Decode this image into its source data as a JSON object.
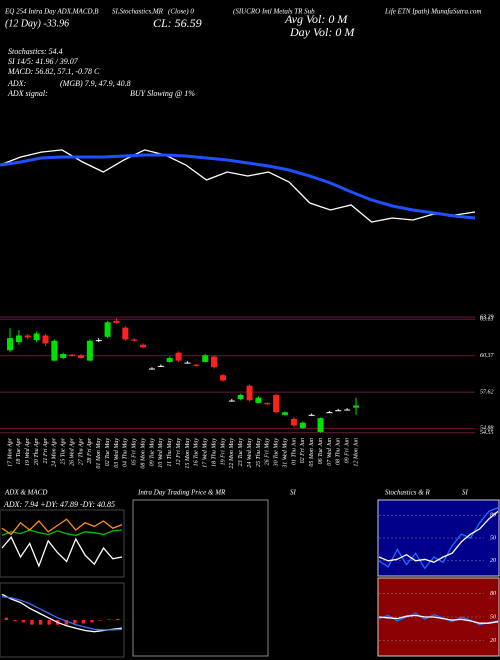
{
  "header": {
    "items": [
      "EQ 254 Intra Day ADX,MACD,B",
      "SI,Stochastics,MR",
      "(Close) 0",
      "(SIUCRO Intl Metals TR Sub",
      "Life ETN Ipath) MunafaSutra.com",
      "(12 Day) -33.96",
      "CL: 56.59",
      "Avg Vol: 0  M",
      "Day Vol: 0  M",
      "Stochastics: 54.4",
      "SI 14/5: 41.96 / 39.07",
      "MACD: 56.82, 57.1, -0.78  C",
      "ADX:",
      "(MGB) 7.9, 47.9, 40.8",
      "ADX signal:",
      "BUY Slowing @ 1%"
    ]
  },
  "intraday": {
    "title": "Intra Day Trading Price & MR",
    "suffix": "SI"
  },
  "chart_data": [
    {
      "type": "line",
      "ylim": [
        54,
        64
      ],
      "series": [
        {
          "name": "Price",
          "color": "#ffffff",
          "values": [
            60.67,
            61.43,
            61.9,
            62.1,
            60.95,
            60.0,
            61.14,
            62.1,
            61.62,
            60.67,
            59.24,
            60.0,
            59.62,
            60.0,
            59.05,
            57.05,
            56.38,
            56.86,
            55.24,
            55.62,
            55.43,
            56.0,
            55.9,
            56.19
          ]
        },
        {
          "name": "MA",
          "color": "#1e50ff",
          "values": [
            60.67,
            60.95,
            61.33,
            61.43,
            61.43,
            61.43,
            61.52,
            61.62,
            61.62,
            61.52,
            61.33,
            61.14,
            60.86,
            60.57,
            60.19,
            59.62,
            58.95,
            58.1,
            57.33,
            56.76,
            56.38,
            56.1,
            55.81,
            55.62
          ]
        }
      ]
    },
    {
      "type": "candlestick",
      "ylim": [
        54.3,
        63.6
      ],
      "yticks": [
        63.29,
        63.13,
        60.37,
        57.62,
        54.88,
        54.55
      ],
      "up_color": "#00e000",
      "down_color": "#ff2020",
      "flat_color": "#ffffff",
      "grid_color": "#6a1b3a",
      "categories": [
        "17 Mon Apr",
        "18 Tue Apr",
        "19 Wed Apr",
        "20 Thu Apr",
        "21 Fri Apr",
        "24 Mon Apr",
        "25 Tue Apr",
        "26 Wed Apr",
        "27 Thu Apr",
        "28 Fri Apr",
        "01 Mon May",
        "02 Tue May",
        "03 Wed May",
        "04 Thu May",
        "05 Fri May",
        "08 Mon May",
        "09 Tue May",
        "10 Wed May",
        "11 Thu May",
        "12 Fri May",
        "15 Mon May",
        "16 Tue May",
        "17 Wed May",
        "18 Thu May",
        "19 Fri May",
        "22 Mon May",
        "23 Tue May",
        "24 Wed May",
        "25 Thu May",
        "26 Fri May",
        "30 Tue May",
        "31 Wed May",
        "01 Thu Jun",
        "02 Fri Jun",
        "05 Mon Jun",
        "06 Tue Jun",
        "07 Wed Jun",
        "08 Thu Jun",
        "09 Fri Jun",
        "12 Mon Jun"
      ],
      "open": [
        60.78,
        61.4,
        61.9,
        61.55,
        61.9,
        60.0,
        60.2,
        60.45,
        60.4,
        60.0,
        61.55,
        61.8,
        63.0,
        62.5,
        61.6,
        61.2,
        59.4,
        59.6,
        59.9,
        60.6,
        59.85,
        59.7,
        59.9,
        60.3,
        58.9,
        56.98,
        57.1,
        58.1,
        56.8,
        56.8,
        57.4,
        55.9,
        55.6,
        54.9,
        55.9,
        54.6,
        56.1,
        56.25,
        56.3,
        56.45
      ],
      "close": [
        61.7,
        61.9,
        61.75,
        62.05,
        61.3,
        61.5,
        60.5,
        60.35,
        60.2,
        61.5,
        61.55,
        62.9,
        62.85,
        61.6,
        61.5,
        61.0,
        59.4,
        59.6,
        60.2,
        60.0,
        59.85,
        59.6,
        60.4,
        59.5,
        58.5,
        56.98,
        57.4,
        57.0,
        57.2,
        56.7,
        56.1,
        56.1,
        55.1,
        55.3,
        55.9,
        55.65,
        56.1,
        56.25,
        56.3,
        56.6
      ],
      "high": [
        62.45,
        62.3,
        62.0,
        62.2,
        62.0,
        61.6,
        60.6,
        60.5,
        60.5,
        61.6,
        61.7,
        63.0,
        63.2,
        62.6,
        61.7,
        61.3,
        59.5,
        59.7,
        60.3,
        60.7,
        59.95,
        59.75,
        60.5,
        60.4,
        59.0,
        57.1,
        57.5,
        58.2,
        57.3,
        56.85,
        57.5,
        56.15,
        55.7,
        55.4,
        56.0,
        55.7,
        56.2,
        56.35,
        56.4,
        57.2
      ],
      "low": [
        60.63,
        61.2,
        61.6,
        61.4,
        61.1,
        59.95,
        60.1,
        60.3,
        60.15,
        59.95,
        61.4,
        61.7,
        62.8,
        61.5,
        61.45,
        60.95,
        59.35,
        59.55,
        59.85,
        59.9,
        59.8,
        59.55,
        59.85,
        59.4,
        58.4,
        56.9,
        57.0,
        56.9,
        56.75,
        56.65,
        56.0,
        55.85,
        55.0,
        54.85,
        55.85,
        54.55,
        56.05,
        56.2,
        56.25,
        55.9
      ]
    },
    {
      "type": "line",
      "title": "ADX  & MACD",
      "subtitle": "ADX: 7.94  +DY: 47.89  -DY: 40.85",
      "ylim": [
        0,
        70
      ],
      "series": [
        {
          "name": "+DY",
          "color": "#00c000",
          "values": [
            44,
            48,
            46,
            50,
            47,
            45,
            49,
            46,
            44,
            48,
            47,
            45,
            49,
            50
          ]
        },
        {
          "name": "-DY",
          "color": "#ff8c1a",
          "values": [
            52,
            45,
            58,
            50,
            60,
            48,
            55,
            62,
            50,
            58,
            54,
            60,
            52,
            56
          ]
        },
        {
          "name": "ADX",
          "color": "#ffffff",
          "values": [
            30,
            42,
            20,
            35,
            10,
            38,
            25,
            15,
            40,
            22,
            12,
            30,
            18,
            20
          ]
        }
      ]
    },
    {
      "type": "line",
      "ylim": [
        -3,
        3
      ],
      "series": [
        {
          "name": "MACD",
          "color": "#ffffff",
          "values": [
            2.2,
            1.8,
            1.5,
            1.0,
            0.6,
            0.2,
            -0.2,
            -0.5,
            -0.7,
            -0.9,
            -1.0,
            -0.9,
            -0.8,
            -0.7
          ]
        },
        {
          "name": "Signal",
          "color": "#3a6cff",
          "values": [
            2.0,
            1.9,
            1.7,
            1.4,
            1.0,
            0.6,
            0.2,
            -0.1,
            -0.4,
            -0.6,
            -0.8,
            -0.85,
            -0.85,
            -0.8
          ]
        }
      ],
      "histogram": {
        "color": "#ff2020",
        "values": [
          0.2,
          -0.1,
          -0.2,
          -0.4,
          -0.4,
          -0.4,
          -0.4,
          -0.4,
          -0.3,
          -0.3,
          -0.2,
          -0.05,
          0.05,
          0.1
        ]
      }
    },
    {
      "type": "line",
      "title": "Stochastics & R",
      "suffix": "SI",
      "background": "#00008b",
      "ylim": [
        0,
        100
      ],
      "yticks": [
        20,
        50,
        80
      ],
      "series": [
        {
          "name": "Stochastics",
          "color": "#1e6cff",
          "values": [
            20,
            12,
            35,
            15,
            30,
            10,
            25,
            18,
            40,
            55,
            50,
            70,
            85,
            90
          ]
        },
        {
          "name": "Signal",
          "color": "#ffffff",
          "values": [
            25,
            20,
            22,
            28,
            20,
            22,
            18,
            25,
            30,
            45,
            55,
            62,
            75,
            85
          ]
        }
      ]
    },
    {
      "type": "line",
      "background": "#8b0000",
      "ylim": [
        0,
        100
      ],
      "yticks": [
        20,
        50,
        80
      ],
      "series": [
        {
          "name": "RSI",
          "color": "#1e6cff",
          "values": [
            48,
            52,
            45,
            50,
            55,
            47,
            53,
            49,
            44,
            50,
            46,
            40,
            43,
            45
          ]
        },
        {
          "name": "MRSI",
          "color": "#ffffff",
          "values": [
            50,
            49,
            48,
            51,
            52,
            50,
            50,
            48,
            46,
            47,
            45,
            42,
            42,
            44
          ]
        }
      ]
    }
  ]
}
